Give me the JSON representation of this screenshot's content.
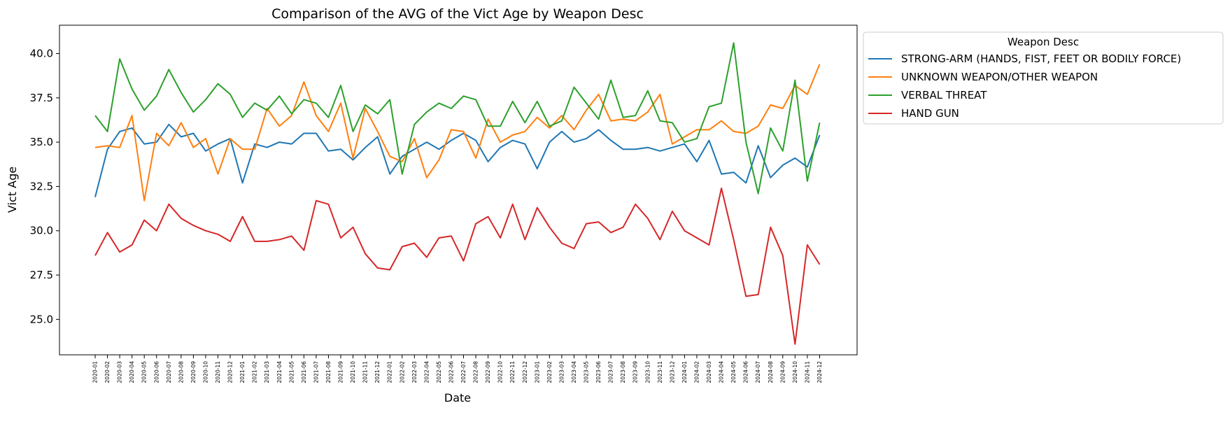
{
  "chart_data": {
    "type": "line",
    "title": "Comparison of the AVG of the Vict Age by Weapon Desc",
    "xlabel": "Date",
    "ylabel": "Vict Age",
    "ylim": [
      23.0,
      41.6
    ],
    "yticks": [
      "25.0",
      "27.5",
      "30.0",
      "32.5",
      "35.0",
      "37.5",
      "40.0"
    ],
    "ytick_values": [
      25.0,
      27.5,
      30.0,
      32.5,
      35.0,
      37.5,
      40.0
    ],
    "grid": false,
    "legend": {
      "title": "Weapon Desc",
      "placement": "outside-right"
    },
    "x": [
      "2020-01",
      "2020-02",
      "2020-03",
      "2020-04",
      "2020-05",
      "2020-06",
      "2020-07",
      "2020-08",
      "2020-09",
      "2020-10",
      "2020-11",
      "2020-12",
      "2021-01",
      "2021-02",
      "2021-03",
      "2021-04",
      "2021-05",
      "2021-06",
      "2021-07",
      "2021-08",
      "2021-09",
      "2021-10",
      "2021-11",
      "2021-12",
      "2022-01",
      "2022-02",
      "2022-03",
      "2022-04",
      "2022-05",
      "2022-06",
      "2022-07",
      "2022-08",
      "2022-09",
      "2022-10",
      "2022-11",
      "2022-12",
      "2023-01",
      "2023-02",
      "2023-03",
      "2023-04",
      "2023-05",
      "2023-06",
      "2023-07",
      "2023-08",
      "2023-09",
      "2023-10",
      "2023-11",
      "2023-12",
      "2024-01",
      "2024-02",
      "2024-03",
      "2024-04",
      "2024-05",
      "2024-06",
      "2024-07",
      "2024-08",
      "2024-09",
      "2024-10",
      "2024-11",
      "2024-12"
    ],
    "series": [
      {
        "name": "STRONG-ARM (HANDS, FIST, FEET OR BODILY FORCE)",
        "color": "#1f77b4",
        "values": [
          31.9,
          34.6,
          35.6,
          35.8,
          34.9,
          35.0,
          36.0,
          35.3,
          35.5,
          34.5,
          34.9,
          35.2,
          32.7,
          34.9,
          34.7,
          35.0,
          34.9,
          35.5,
          35.5,
          34.5,
          34.6,
          34.0,
          34.7,
          35.3,
          33.2,
          34.2,
          34.6,
          35.0,
          34.6,
          35.1,
          35.5,
          35.1,
          33.9,
          34.7,
          35.1,
          34.9,
          33.5,
          35.0,
          35.6,
          35.0,
          35.2,
          35.7,
          35.1,
          34.6,
          34.6,
          34.7,
          34.5,
          34.7,
          34.9,
          33.9,
          35.1,
          33.2,
          33.3,
          32.7,
          34.8,
          33.0,
          33.7,
          34.1,
          33.6,
          35.4
        ]
      },
      {
        "name": "UNKNOWN WEAPON/OTHER WEAPON",
        "color": "#ff7f0e",
        "values": [
          34.7,
          34.8,
          34.7,
          36.5,
          31.7,
          35.5,
          34.8,
          36.1,
          34.7,
          35.2,
          33.2,
          35.2,
          34.6,
          34.6,
          36.9,
          35.9,
          36.5,
          38.4,
          36.5,
          35.6,
          37.2,
          34.1,
          36.9,
          35.6,
          34.2,
          33.9,
          35.2,
          33.0,
          34.0,
          35.7,
          35.6,
          34.1,
          36.3,
          35.0,
          35.4,
          35.6,
          36.4,
          35.8,
          36.5,
          35.7,
          36.8,
          37.7,
          36.2,
          36.3,
          36.2,
          36.7,
          37.7,
          34.9,
          35.3,
          35.7,
          35.7,
          36.2,
          35.6,
          35.5,
          35.9,
          37.1,
          36.9,
          38.2,
          37.7,
          39.4
        ]
      },
      {
        "name": "VERBAL THREAT",
        "color": "#2ca02c",
        "values": [
          36.5,
          35.6,
          39.7,
          38.0,
          36.8,
          37.6,
          39.1,
          37.8,
          36.7,
          37.4,
          38.3,
          37.7,
          36.4,
          37.2,
          36.8,
          37.6,
          36.6,
          37.4,
          37.2,
          36.4,
          38.2,
          35.6,
          37.1,
          36.6,
          37.4,
          33.2,
          36.0,
          36.7,
          37.2,
          36.9,
          37.6,
          37.4,
          35.9,
          35.9,
          37.3,
          36.1,
          37.3,
          35.9,
          36.2,
          38.1,
          37.2,
          36.3,
          38.5,
          36.4,
          36.5,
          37.9,
          36.2,
          36.1,
          35.0,
          35.2,
          37.0,
          37.2,
          40.6,
          35.0,
          32.1,
          35.8,
          34.5,
          38.5,
          32.8,
          36.1
        ]
      },
      {
        "name": "HAND GUN",
        "color": "#d62728",
        "values": [
          28.6,
          29.9,
          28.8,
          29.2,
          30.6,
          30.0,
          31.5,
          30.7,
          30.3,
          30.0,
          29.8,
          29.4,
          30.8,
          29.4,
          29.4,
          29.5,
          29.7,
          28.9,
          31.7,
          31.5,
          29.6,
          30.2,
          28.7,
          27.9,
          27.8,
          29.1,
          29.3,
          28.5,
          29.6,
          29.7,
          28.3,
          30.4,
          30.8,
          29.6,
          31.5,
          29.5,
          31.3,
          30.2,
          29.3,
          29.0,
          30.4,
          30.5,
          29.9,
          30.2,
          31.5,
          30.7,
          29.5,
          31.1,
          30.0,
          29.6,
          29.2,
          32.4,
          29.5,
          26.3,
          26.4,
          30.2,
          28.6,
          23.6,
          29.2,
          28.1
        ]
      }
    ]
  }
}
